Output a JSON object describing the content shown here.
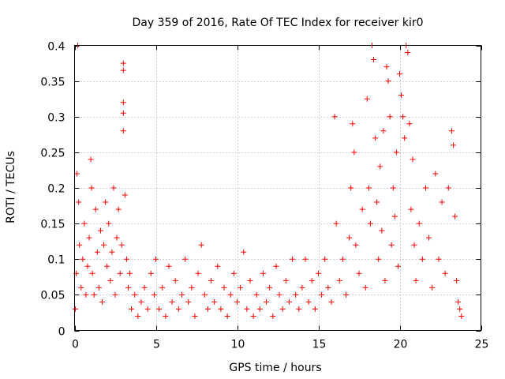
{
  "chart_data": {
    "type": "scatter",
    "title": "Day 359 of 2016, Rate Of TEC Index for receiver kir0",
    "xlabel": "GPS time / hours",
    "ylabel": "ROTI / TECUs",
    "xlim": [
      0,
      25
    ],
    "ylim": [
      0,
      0.4
    ],
    "x_ticks": [
      0,
      5,
      10,
      15,
      20,
      25
    ],
    "y_ticks": [
      0,
      0.05,
      0.1,
      0.15,
      0.2,
      0.25,
      0.3,
      0.35,
      0.4
    ],
    "x_tick_labels": [
      "0",
      "5",
      "10",
      "15",
      "20",
      "25"
    ],
    "y_tick_labels": [
      "0",
      "0.05",
      "0.1",
      "0.15",
      "0.2",
      "0.25",
      "0.3",
      "0.35",
      "0.4"
    ],
    "grid": true,
    "marker": "plus",
    "color": "#ff0000",
    "points": [
      [
        0.05,
        0.03
      ],
      [
        0.1,
        0.08
      ],
      [
        0.15,
        0.22
      ],
      [
        0.2,
        0.4
      ],
      [
        0.25,
        0.18
      ],
      [
        0.3,
        0.12
      ],
      [
        0.4,
        0.06
      ],
      [
        0.5,
        0.1
      ],
      [
        0.6,
        0.15
      ],
      [
        0.7,
        0.05
      ],
      [
        0.8,
        0.09
      ],
      [
        0.9,
        0.13
      ],
      [
        1.0,
        0.24
      ],
      [
        1.05,
        0.2
      ],
      [
        1.1,
        0.08
      ],
      [
        1.2,
        0.05
      ],
      [
        1.3,
        0.17
      ],
      [
        1.4,
        0.11
      ],
      [
        1.5,
        0.06
      ],
      [
        1.6,
        0.14
      ],
      [
        1.7,
        0.04
      ],
      [
        1.8,
        0.12
      ],
      [
        1.9,
        0.18
      ],
      [
        2.0,
        0.09
      ],
      [
        2.1,
        0.15
      ],
      [
        2.2,
        0.07
      ],
      [
        2.3,
        0.11
      ],
      [
        2.4,
        0.2
      ],
      [
        2.5,
        0.05
      ],
      [
        2.6,
        0.13
      ],
      [
        2.7,
        0.17
      ],
      [
        2.8,
        0.08
      ],
      [
        2.9,
        0.12
      ],
      [
        3.0,
        0.375
      ],
      [
        3.0,
        0.365
      ],
      [
        3.0,
        0.32
      ],
      [
        3.0,
        0.305
      ],
      [
        3.0,
        0.28
      ],
      [
        3.1,
        0.19
      ],
      [
        3.2,
        0.1
      ],
      [
        3.3,
        0.06
      ],
      [
        3.4,
        0.08
      ],
      [
        3.5,
        0.03
      ],
      [
        3.7,
        0.05
      ],
      [
        3.9,
        0.02
      ],
      [
        4.1,
        0.04
      ],
      [
        4.3,
        0.06
      ],
      [
        4.5,
        0.03
      ],
      [
        4.7,
        0.08
      ],
      [
        4.9,
        0.05
      ],
      [
        5.0,
        0.1
      ],
      [
        5.2,
        0.03
      ],
      [
        5.4,
        0.06
      ],
      [
        5.6,
        0.02
      ],
      [
        5.8,
        0.09
      ],
      [
        6.0,
        0.04
      ],
      [
        6.2,
        0.07
      ],
      [
        6.4,
        0.03
      ],
      [
        6.6,
        0.05
      ],
      [
        6.8,
        0.1
      ],
      [
        7.0,
        0.04
      ],
      [
        7.2,
        0.06
      ],
      [
        7.4,
        0.02
      ],
      [
        7.6,
        0.08
      ],
      [
        7.8,
        0.12
      ],
      [
        8.0,
        0.05
      ],
      [
        8.2,
        0.03
      ],
      [
        8.4,
        0.07
      ],
      [
        8.6,
        0.04
      ],
      [
        8.8,
        0.09
      ],
      [
        9.0,
        0.03
      ],
      [
        9.2,
        0.06
      ],
      [
        9.4,
        0.02
      ],
      [
        9.6,
        0.05
      ],
      [
        9.8,
        0.08
      ],
      [
        10.0,
        0.04
      ],
      [
        10.2,
        0.06
      ],
      [
        10.4,
        0.11
      ],
      [
        10.6,
        0.03
      ],
      [
        10.8,
        0.07
      ],
      [
        11.0,
        0.02
      ],
      [
        11.2,
        0.05
      ],
      [
        11.4,
        0.03
      ],
      [
        11.6,
        0.08
      ],
      [
        11.8,
        0.04
      ],
      [
        12.0,
        0.06
      ],
      [
        12.2,
        0.02
      ],
      [
        12.4,
        0.09
      ],
      [
        12.6,
        0.05
      ],
      [
        12.8,
        0.03
      ],
      [
        13.0,
        0.07
      ],
      [
        13.2,
        0.04
      ],
      [
        13.4,
        0.1
      ],
      [
        13.6,
        0.05
      ],
      [
        13.8,
        0.03
      ],
      [
        14.0,
        0.06
      ],
      [
        14.2,
        0.1
      ],
      [
        14.4,
        0.04
      ],
      [
        14.6,
        0.07
      ],
      [
        14.8,
        0.03
      ],
      [
        15.0,
        0.08
      ],
      [
        15.2,
        0.05
      ],
      [
        15.4,
        0.1
      ],
      [
        15.6,
        0.06
      ],
      [
        15.8,
        0.04
      ],
      [
        16.0,
        0.3
      ],
      [
        16.1,
        0.15
      ],
      [
        16.3,
        0.07
      ],
      [
        16.5,
        0.1
      ],
      [
        16.7,
        0.05
      ],
      [
        16.9,
        0.13
      ],
      [
        17.0,
        0.2
      ],
      [
        17.1,
        0.29
      ],
      [
        17.2,
        0.25
      ],
      [
        17.3,
        0.12
      ],
      [
        17.5,
        0.08
      ],
      [
        17.7,
        0.17
      ],
      [
        17.9,
        0.06
      ],
      [
        18.0,
        0.325
      ],
      [
        18.1,
        0.2
      ],
      [
        18.2,
        0.15
      ],
      [
        18.3,
        0.4
      ],
      [
        18.4,
        0.38
      ],
      [
        18.5,
        0.27
      ],
      [
        18.6,
        0.18
      ],
      [
        18.7,
        0.1
      ],
      [
        18.8,
        0.23
      ],
      [
        18.9,
        0.14
      ],
      [
        19.0,
        0.28
      ],
      [
        19.1,
        0.07
      ],
      [
        19.2,
        0.37
      ],
      [
        19.3,
        0.35
      ],
      [
        19.4,
        0.3
      ],
      [
        19.5,
        0.12
      ],
      [
        19.6,
        0.2
      ],
      [
        19.7,
        0.16
      ],
      [
        19.8,
        0.25
      ],
      [
        19.9,
        0.09
      ],
      [
        20.0,
        0.36
      ],
      [
        20.1,
        0.33
      ],
      [
        20.2,
        0.3
      ],
      [
        20.3,
        0.27
      ],
      [
        20.4,
        0.4
      ],
      [
        20.5,
        0.39
      ],
      [
        20.6,
        0.29
      ],
      [
        20.7,
        0.17
      ],
      [
        20.8,
        0.24
      ],
      [
        20.9,
        0.12
      ],
      [
        21.0,
        0.07
      ],
      [
        21.2,
        0.15
      ],
      [
        21.4,
        0.1
      ],
      [
        21.6,
        0.2
      ],
      [
        21.8,
        0.13
      ],
      [
        22.0,
        0.06
      ],
      [
        22.2,
        0.22
      ],
      [
        22.4,
        0.1
      ],
      [
        22.6,
        0.18
      ],
      [
        22.8,
        0.08
      ],
      [
        23.0,
        0.2
      ],
      [
        23.2,
        0.28
      ],
      [
        23.3,
        0.26
      ],
      [
        23.4,
        0.16
      ],
      [
        23.5,
        0.07
      ],
      [
        23.6,
        0.04
      ],
      [
        23.7,
        0.03
      ],
      [
        23.8,
        0.02
      ]
    ]
  }
}
